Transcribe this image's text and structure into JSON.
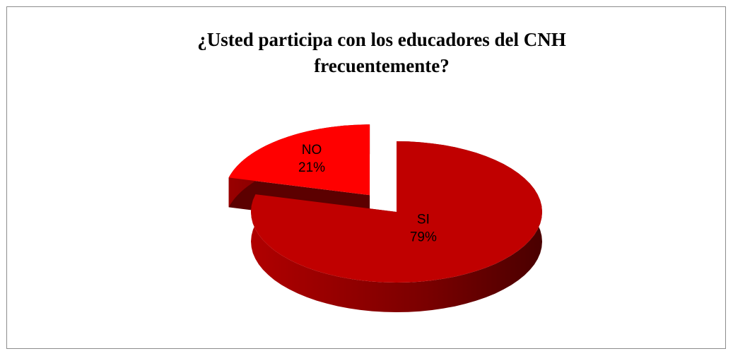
{
  "chart_data": {
    "type": "pie",
    "title": "¿Usted participa con los educadores del CNH frecuentemente?",
    "categories": [
      "SI",
      "NO"
    ],
    "values": [
      79,
      21
    ],
    "value_labels": [
      "79%",
      "21%"
    ],
    "colors": [
      "#c00000",
      "#ff0000"
    ],
    "explode": [
      false,
      true
    ]
  }
}
